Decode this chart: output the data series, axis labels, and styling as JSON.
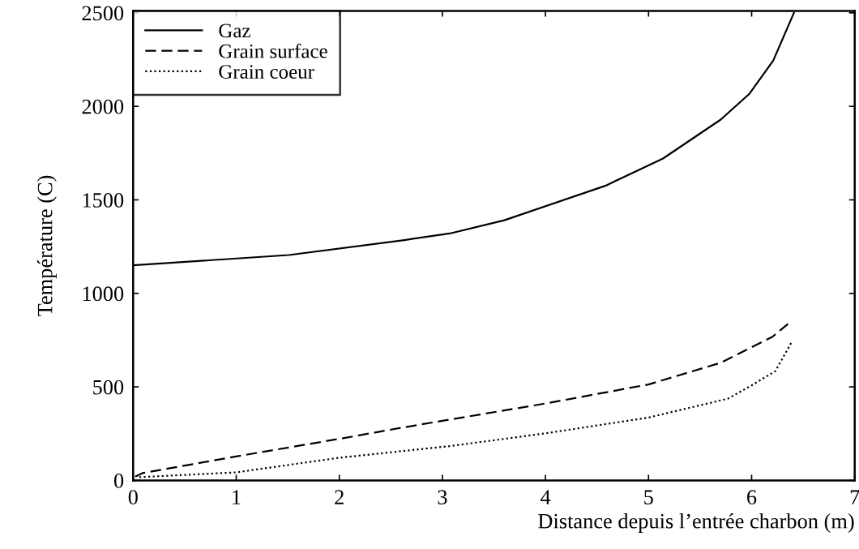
{
  "chart_data": {
    "type": "line",
    "xlabel": "Distance depuis l’entrée charbon (m)",
    "ylabel": "Température (C)",
    "xlim": [
      0,
      7
    ],
    "xticks": [
      0,
      1,
      2,
      3,
      4,
      5,
      6,
      7
    ],
    "ylim": [
      0,
      2510
    ],
    "yticks": [
      0,
      500,
      1000,
      1500,
      2000,
      2500
    ],
    "grid": false,
    "legend": "top left",
    "marker": "none",
    "series": [
      {
        "name": "Gaz",
        "color": "#000000",
        "line_style": "solid",
        "x": [
          0,
          1.51,
          2.63,
          3.07,
          3.6,
          4.58,
          5.14,
          5.7,
          5.98,
          6.21,
          6.41
        ],
        "values": [
          1150,
          1205,
          1285,
          1320,
          1391,
          1575,
          1721,
          1929,
          2068,
          2245,
          2500
        ]
      },
      {
        "name": "Grain surface",
        "color": "#000000",
        "line_style": "dashed",
        "x": [
          0.02,
          0.09,
          1.01,
          2.0,
          2.63,
          4.03,
          5.0,
          5.7,
          6.2,
          6.38
        ],
        "values": [
          20,
          39,
          129,
          222,
          284,
          414,
          513,
          629,
          767,
          849
        ]
      },
      {
        "name": "Grain coeur",
        "color": "#000000",
        "line_style": "dotted",
        "x": [
          0.06,
          1.0,
          2.0,
          3.1,
          4.03,
          5.0,
          5.77,
          6.0,
          6.23,
          6.39
        ],
        "values": [
          17,
          43,
          121,
          185,
          254,
          336,
          437,
          508,
          584,
          741
        ]
      }
    ]
  }
}
